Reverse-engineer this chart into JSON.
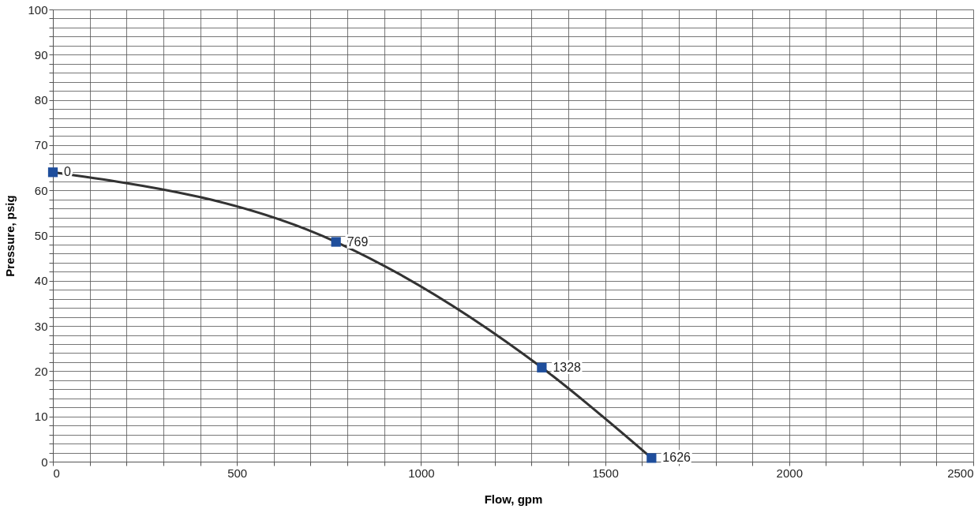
{
  "chart_data": {
    "type": "line",
    "xlabel": "Flow, gpm",
    "ylabel": "Pressure, psig",
    "x": [
      0,
      769,
      1328,
      1626
    ],
    "series": [
      {
        "color": "#1f4e9c",
        "values": [
          64,
          48.6,
          20.8,
          0.8
        ]
      }
    ],
    "annotations": [
      {
        "text": "0",
        "x": 0,
        "y": 64
      },
      {
        "text": "769",
        "x": 769,
        "y": 48.6
      },
      {
        "text": "1328",
        "x": 1328,
        "y": 20.8
      },
      {
        "text": "1626",
        "x": 1626,
        "y": 0.8
      }
    ],
    "marker": "square",
    "line_style": "solid",
    "grid": true,
    "legend": false,
    "xlim": [
      0,
      2500
    ],
    "ylim": [
      0,
      100
    ],
    "xticks": [
      0,
      {
        "value": 100,
        "label": null
      },
      {
        "value": 200,
        "label": null
      },
      {
        "value": 300,
        "label": null
      },
      {
        "value": 400,
        "label": null
      },
      500,
      {
        "value": 600,
        "label": null
      },
      {
        "value": 700,
        "label": null
      },
      {
        "value": 800,
        "label": null
      },
      {
        "value": 900,
        "label": null
      },
      1000,
      {
        "value": 1100,
        "label": null
      },
      {
        "value": 1200,
        "label": null
      },
      {
        "value": 1300,
        "label": null
      },
      {
        "value": 1400,
        "label": null
      },
      1500,
      {
        "value": 1600,
        "label": null
      },
      {
        "value": 1700,
        "label": null
      },
      {
        "value": 1800,
        "label": null
      },
      {
        "value": 1900,
        "label": null
      },
      2000,
      {
        "value": 2100,
        "label": null
      },
      {
        "value": 2200,
        "label": null
      },
      {
        "value": 2300,
        "label": null
      },
      {
        "value": 2400,
        "label": null
      },
      2500
    ],
    "yticks": [
      0,
      {
        "value": 2,
        "label": null
      },
      {
        "value": 4,
        "label": null
      },
      {
        "value": 6,
        "label": null
      },
      {
        "value": 8,
        "label": null
      },
      10,
      {
        "value": 12,
        "label": null
      },
      {
        "value": 14,
        "label": null
      },
      {
        "value": 16,
        "label": null
      },
      {
        "value": 18,
        "label": null
      },
      20,
      {
        "value": 22,
        "label": null
      },
      {
        "value": 24,
        "label": null
      },
      {
        "value": 26,
        "label": null
      },
      {
        "value": 28,
        "label": null
      },
      30,
      {
        "value": 32,
        "label": null
      },
      {
        "value": 34,
        "label": null
      },
      {
        "value": 36,
        "label": null
      },
      {
        "value": 38,
        "label": null
      },
      40,
      {
        "value": 42,
        "label": null
      },
      {
        "value": 44,
        "label": null
      },
      {
        "value": 46,
        "label": null
      },
      {
        "value": 48,
        "label": null
      },
      50,
      {
        "value": 52,
        "label": null
      },
      {
        "value": 54,
        "label": null
      },
      {
        "value": 56,
        "label": null
      },
      {
        "value": 58,
        "label": null
      },
      60,
      {
        "value": 62,
        "label": null
      },
      {
        "value": 64,
        "label": null
      },
      {
        "value": 66,
        "label": null
      },
      {
        "value": 68,
        "label": null
      },
      70,
      {
        "value": 72,
        "label": null
      },
      {
        "value": 74,
        "label": null
      },
      {
        "value": 76,
        "label": null
      },
      {
        "value": 78,
        "label": null
      },
      80,
      {
        "value": 82,
        "label": null
      },
      {
        "value": 84,
        "label": null
      },
      {
        "value": 86,
        "label": null
      },
      {
        "value": 88,
        "label": null
      },
      90,
      {
        "value": 92,
        "label": null
      },
      {
        "value": 94,
        "label": null
      },
      {
        "value": 96,
        "label": null
      },
      {
        "value": 98,
        "label": null
      },
      100
    ]
  }
}
